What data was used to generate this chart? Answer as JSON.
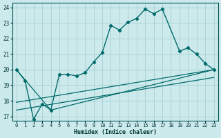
{
  "xlabel": "Humidex (Indice chaleur)",
  "bg_color": "#cce9eb",
  "grid_color": "#aad4d6",
  "line_color": "#006b6b",
  "xlim": [
    -0.5,
    23.5
  ],
  "ylim": [
    16.7,
    24.3
  ],
  "yticks": [
    17,
    18,
    19,
    20,
    21,
    22,
    23,
    24
  ],
  "xticks": [
    0,
    1,
    2,
    3,
    4,
    5,
    6,
    7,
    8,
    9,
    10,
    11,
    12,
    13,
    14,
    15,
    16,
    17,
    18,
    19,
    20,
    21,
    22,
    23
  ],
  "series1_x": [
    0,
    1,
    2,
    3,
    4,
    5,
    6,
    7,
    8,
    9,
    10,
    11,
    12,
    13,
    14,
    15,
    16,
    17,
    19,
    20,
    21,
    22,
    23
  ],
  "series1_y": [
    20.0,
    19.3,
    16.8,
    17.8,
    17.4,
    19.7,
    19.7,
    19.6,
    19.8,
    20.5,
    21.1,
    22.85,
    22.55,
    23.05,
    23.3,
    23.9,
    23.6,
    23.9,
    21.2,
    21.4,
    21.0,
    20.4,
    20.0
  ],
  "series2_x": [
    0,
    4,
    23
  ],
  "series2_y": [
    20.0,
    17.4,
    20.0
  ],
  "series3_x": [
    0,
    23
  ],
  "series3_y": [
    17.9,
    20.0
  ],
  "series4_x": [
    0,
    23
  ],
  "series4_y": [
    17.4,
    19.5
  ]
}
